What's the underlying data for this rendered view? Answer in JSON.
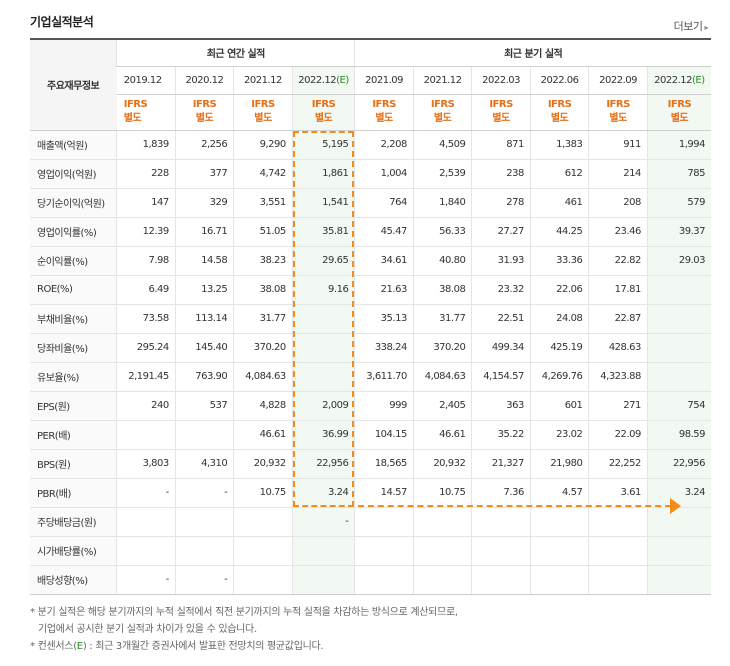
{
  "title": "기업실적분석",
  "more_label": "더보기",
  "header": {
    "label_col": "주요재무정보",
    "annual_group": "최근 연간 실적",
    "quarter_group": "최근 분기 실적",
    "periods": [
      "2019.12",
      "2020.12",
      "2021.12",
      "2022.12(E)",
      "2021.09",
      "2021.12",
      "2022.03",
      "2022.06",
      "2022.09",
      "2022.12(E)"
    ],
    "ifrs_top": "IFRS",
    "ifrs_bottom": "별도"
  },
  "rows": [
    {
      "label": "매출액(억원)",
      "values": [
        "1,839",
        "2,256",
        "9,290",
        "5,195",
        "2,208",
        "4,509",
        "871",
        "1,383",
        "911",
        "1,994"
      ]
    },
    {
      "label": "영업이익(억원)",
      "values": [
        "228",
        "377",
        "4,742",
        "1,861",
        "1,004",
        "2,539",
        "238",
        "612",
        "214",
        "785"
      ]
    },
    {
      "label": "당기순이익(억원)",
      "values": [
        "147",
        "329",
        "3,551",
        "1,541",
        "764",
        "1,840",
        "278",
        "461",
        "208",
        "579"
      ]
    },
    {
      "label": "영업이익률(%)",
      "values": [
        "12.39",
        "16.71",
        "51.05",
        "35.81",
        "45.47",
        "56.33",
        "27.27",
        "44.25",
        "23.46",
        "39.37"
      ]
    },
    {
      "label": "순이익률(%)",
      "values": [
        "7.98",
        "14.58",
        "38.23",
        "29.65",
        "34.61",
        "40.80",
        "31.93",
        "33.36",
        "22.82",
        "29.03"
      ]
    },
    {
      "label": "ROE(%)",
      "values": [
        "6.49",
        "13.25",
        "38.08",
        "9.16",
        "21.63",
        "38.08",
        "23.32",
        "22.06",
        "17.81",
        ""
      ]
    },
    {
      "label": "부채비율(%)",
      "values": [
        "73.58",
        "113.14",
        "31.77",
        "",
        "35.13",
        "31.77",
        "22.51",
        "24.08",
        "22.87",
        ""
      ]
    },
    {
      "label": "당좌비율(%)",
      "values": [
        "295.24",
        "145.40",
        "370.20",
        "",
        "338.24",
        "370.20",
        "499.34",
        "425.19",
        "428.63",
        ""
      ]
    },
    {
      "label": "유보율(%)",
      "values": [
        "2,191.45",
        "763.90",
        "4,084.63",
        "",
        "3,611.70",
        "4,084.63",
        "4,154.57",
        "4,269.76",
        "4,323.88",
        ""
      ]
    },
    {
      "label": "EPS(원)",
      "values": [
        "240",
        "537",
        "4,828",
        "2,009",
        "999",
        "2,405",
        "363",
        "601",
        "271",
        "754"
      ]
    },
    {
      "label": "PER(배)",
      "values": [
        "",
        "",
        "46.61",
        "36.99",
        "104.15",
        "46.61",
        "35.22",
        "23.02",
        "22.09",
        "98.59"
      ]
    },
    {
      "label": "BPS(원)",
      "values": [
        "3,803",
        "4,310",
        "20,932",
        "22,956",
        "18,565",
        "20,932",
        "21,327",
        "21,980",
        "22,252",
        "22,956"
      ]
    },
    {
      "label": "PBR(배)",
      "values": [
        "-",
        "-",
        "10.75",
        "3.24",
        "14.57",
        "10.75",
        "7.36",
        "4.57",
        "3.61",
        "3.24"
      ]
    },
    {
      "label": "주당배당금(원)",
      "values": [
        "",
        "",
        "",
        "-",
        "",
        "",
        "",
        "",
        "",
        ""
      ]
    },
    {
      "label": "시가배당률(%)",
      "values": [
        "",
        "",
        "",
        "",
        "",
        "",
        "",
        "",
        "",
        ""
      ]
    },
    {
      "label": "배당성향(%)",
      "values": [
        "-",
        "-",
        "",
        "",
        "",
        "",
        "",
        "",
        "",
        ""
      ]
    }
  ],
  "notes": {
    "line1": "분기 실적은 해당 분기까지의 누적 실적에서 직전 분기까지의 누적 실적을 차감하는 방식으로 계산되므로,",
    "line2": "기업에서 공시한 분기 실적과 차이가 있을 수 있습니다.",
    "line3_pre": "컨센서스(",
    "line3_e": "E",
    "line3_post": ") : 최근 3개월간 증권사에서 발표한 전망치의 평균값입니다."
  },
  "colors": {
    "accent_orange": "#f48b1b",
    "ifrs_orange": "#e66f19",
    "estimate_green": "#2a8a2a",
    "estimate_bg": "#f2f8f2"
  }
}
